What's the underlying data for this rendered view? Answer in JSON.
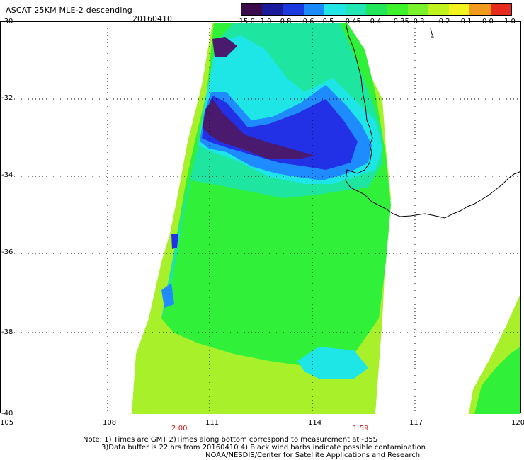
{
  "header": {
    "title": "ASCAT 25KM MLE-2 descending",
    "date": "20160410"
  },
  "colorbar": {
    "labels": [
      "-15.0",
      "-1.0",
      "-0.8",
      "-0.6",
      "-0.5",
      "-0.45",
      "-0.4",
      "-0.35",
      "-0.3",
      "-0.2",
      "-0.1",
      "0.0",
      "1.0"
    ],
    "colors": [
      "#3a0a4a",
      "#1a1a9a",
      "#1a3ae0",
      "#1a8aff",
      "#22e6e6",
      "#22e6b4",
      "#22e65a",
      "#3cf22a",
      "#7af22a",
      "#c0f21e",
      "#f2f21e",
      "#f29a1e",
      "#e62a1e"
    ]
  },
  "map": {
    "x_tick_labels": [
      "105",
      "108",
      "111",
      "114",
      "117",
      "120"
    ],
    "y_tick_labels": [
      "-30",
      "-32",
      "-34",
      "-36",
      "-38",
      "-40"
    ],
    "time_labels": [
      "2:00",
      "1:59"
    ],
    "colors": {
      "purple": "#4a1a6e",
      "blue": "#2230e6",
      "lightblue": "#1e8cff",
      "cyan": "#1ee6e6",
      "aqua": "#1ee6a0",
      "green": "#30f03a",
      "lime": "#7ef02a",
      "yellowgreen": "#a8f02a",
      "coast": "#000000",
      "grid": "#000000"
    }
  },
  "notes": [
    "Note: 1) Times are GMT 2)Times along bottom correspond to measurement at -35S",
    "3)Data buffer is 22 hrs from 20160410 4) Black wind barbs indicate possible contamination",
    "NOAA/NESDIS/Center for Satellite Applications and Research"
  ]
}
